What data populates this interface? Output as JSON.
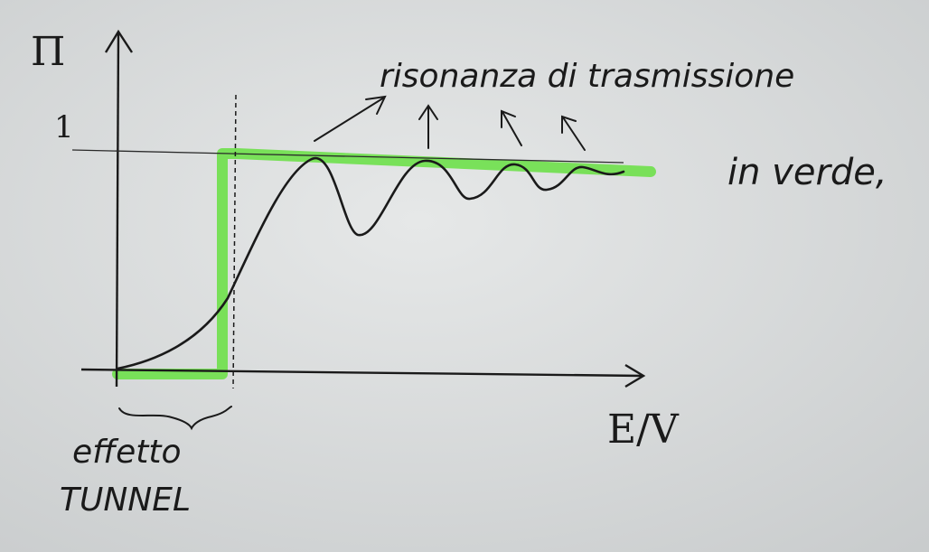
{
  "axes": {
    "y_label": "Π",
    "y_tick": "1",
    "x_label": "E/V"
  },
  "annotations": {
    "resonance": "risonanza di trasmissione",
    "classical": "in verde,",
    "tunnel_line1": "effetto",
    "tunnel_line2": "TUNNEL"
  },
  "colors": {
    "classical_curve": "#6ee04a",
    "ink": "#1a1a1a",
    "paper": "#d9dcdd"
  }
}
